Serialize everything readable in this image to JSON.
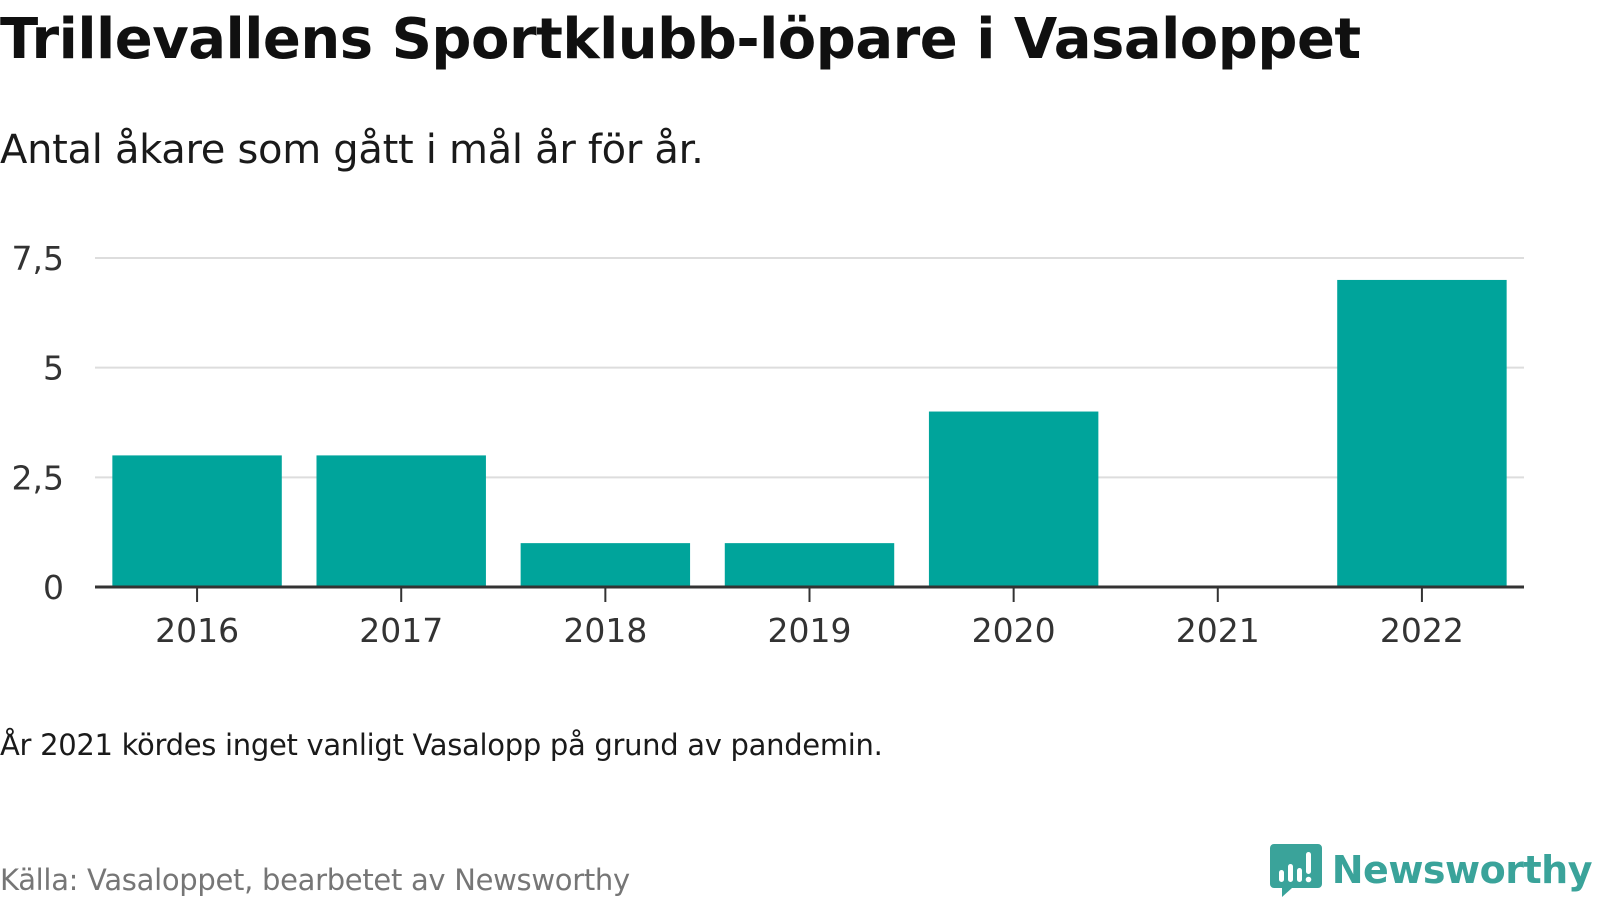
{
  "title": "Trillevallens Sportklubb-löpare i Vasaloppet",
  "subtitle": "Antal åkare som gått i mål år för år.",
  "note": "År 2021 kördes inget vanligt Vasalopp på grund av pandemin.",
  "source": "Källa: Vasaloppet, bearbetet av Newsworthy",
  "brand": {
    "name": "Newsworthy",
    "logo_icon": "bar-chart-speech-bubble-icon",
    "color": "#3aa39a"
  },
  "chart_data": {
    "type": "bar",
    "categories": [
      "2016",
      "2017",
      "2018",
      "2019",
      "2020",
      "2021",
      "2022"
    ],
    "values": [
      3,
      3,
      1,
      1,
      4,
      0,
      7
    ],
    "title": "",
    "xlabel": "",
    "ylabel": "",
    "ylim": [
      0,
      7.5
    ],
    "yticks": [
      0,
      2.5,
      5,
      7.5
    ],
    "ytick_labels": [
      "0",
      "2,5",
      "5",
      "7,5"
    ],
    "grid": true,
    "bar_color": "#00a49b",
    "gridline_color": "#dddddd",
    "axis_color": "#333333"
  }
}
